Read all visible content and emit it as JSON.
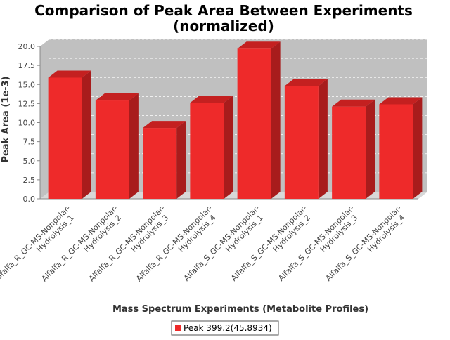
{
  "chart_data": {
    "type": "bar",
    "title": "Comparison of Peak Area Between Experiments",
    "subtitle": "(normalized)",
    "xlabel": "Mass Spectrum Experiments (Metabolite Profiles)",
    "ylabel": "Peak Area (1e-3)",
    "ylim": [
      0,
      20.0
    ],
    "yticks": [
      "0.0",
      "2.5",
      "5.0",
      "7.5",
      "10.0",
      "12.5",
      "15.0",
      "17.5",
      "20.0"
    ],
    "grid": true,
    "legend_position": "bottom",
    "categories": [
      [
        "Alfalfa_R_GC-MS-Nonpolar-",
        "Hydrolysis_1"
      ],
      [
        "Alfalfa_R_GC-MS-Nonpolar-",
        "Hydrolysis_2"
      ],
      [
        "Alfalfa_R_GC-MS-Nonpolar-",
        "Hydrolysis_3"
      ],
      [
        "Alfalfa_R_GC-MS-Nonpolar-",
        "Hydrolysis_4"
      ],
      [
        "Alfalfa_S_GC-MS-Nonpolar-",
        "Hydrolysis_1"
      ],
      [
        "Alfalfa_S_GC-MS-Nonpolar-",
        "Hydrolysis_2"
      ],
      [
        "Alfalfa_S_GC-MS-Nonpolar-",
        "Hydrolysis_3"
      ],
      [
        "Alfalfa_S_GC-MS-Nonpolar-",
        "Hydrolysis_4"
      ]
    ],
    "series": [
      {
        "name": "Peak 399.2(45.8934)",
        "color": "#ee2a2a",
        "values": [
          15.9,
          12.9,
          9.3,
          12.6,
          19.7,
          14.8,
          12.1,
          12.4
        ]
      }
    ],
    "colors": {
      "plot_background": "#c0c0c0",
      "bar_top": "#c42020",
      "bar_side": "#a81c1c",
      "gridline": "#ffffff"
    }
  }
}
